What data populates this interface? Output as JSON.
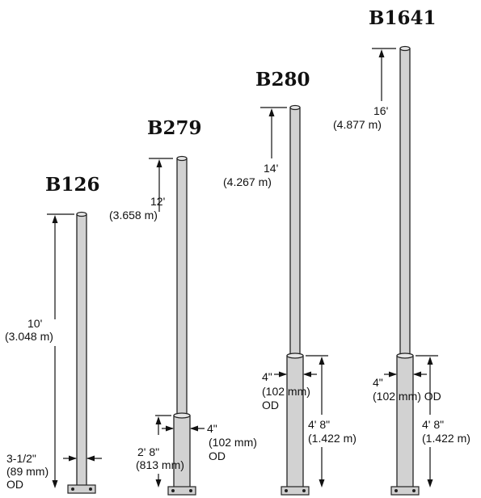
{
  "poles": [
    {
      "model": "B126",
      "height_ft": "10'",
      "height_m": "(3.048 m)",
      "od_in": "3-1/2\"",
      "od_mm": "(89 mm)",
      "od_label": "OD"
    },
    {
      "model": "B279",
      "height_ft": "12'",
      "height_m": "(3.658 m)",
      "sleeve_od_in": "4\"",
      "sleeve_od_mm": "(102 mm)",
      "sleeve_od_label": "OD",
      "sleeve_len_ft": "2' 8\"",
      "sleeve_len_mm": "(813 mm)"
    },
    {
      "model": "B280",
      "height_ft": "14'",
      "height_m": "(4.267 m)",
      "sleeve_od_in": "4\"",
      "sleeve_od_mm": "(102 mm)",
      "sleeve_od_label": "OD",
      "sleeve_len_ft": "4' 8\"",
      "sleeve_len_m": "(1.422 m)"
    },
    {
      "model": "B1641",
      "height_ft": "16'",
      "height_m": "(4.877 m)",
      "sleeve_od_in": "4\"",
      "sleeve_od_mm": "(102 mm) OD",
      "sleeve_len_ft": "4' 8\"",
      "sleeve_len_m": "(1.422 m)"
    }
  ]
}
